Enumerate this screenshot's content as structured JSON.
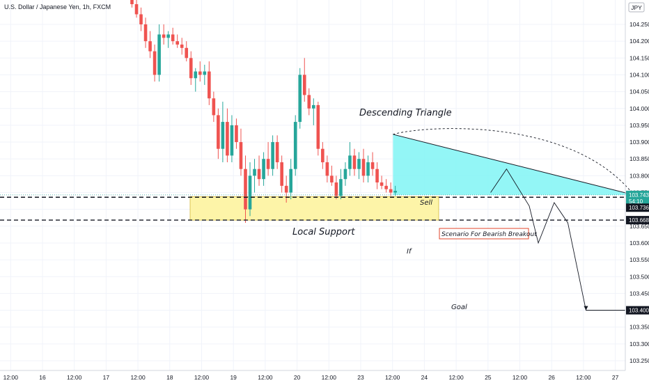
{
  "header": {
    "title": "U.S. Dollar / Japanese Yen, 1h, FXCM",
    "currency_badge": "JPY"
  },
  "chart_data": {
    "type": "candlestick",
    "instrument": "U.S. Dollar / Japanese Yen",
    "timeframe": "1h",
    "source": "FXCM",
    "ylim": [
      103.22,
      104.32
    ],
    "y_ticks": [
      104.25,
      104.2,
      104.15,
      104.1,
      104.05,
      104.0,
      103.95,
      103.9,
      103.85,
      103.8,
      103.75,
      103.7,
      103.65,
      103.6,
      103.55,
      103.5,
      103.45,
      103.4,
      103.35,
      103.3,
      103.25
    ],
    "y_tick_labels": [
      "104.250",
      "104.200",
      "104.150",
      "104.100",
      "104.050",
      "104.000",
      "103.950",
      "103.900",
      "103.850",
      "103.800",
      "103.750",
      "103.700",
      "103.650",
      "103.600",
      "103.550",
      "103.500",
      "103.450",
      "103.400",
      "103.350",
      "103.300",
      "103.250"
    ],
    "top_partial_label": "1",
    "x_labels": [
      "12:00",
      "16",
      "12:00",
      "17",
      "12:00",
      "18",
      "12:00",
      "19",
      "12:00",
      "20",
      "12:00",
      "23",
      "12:00",
      "24",
      "12:00",
      "25",
      "12:00",
      "26",
      "12:00",
      "27"
    ],
    "x_unit": "hours from Nov 16 00:00 (chart session hours)",
    "x_positions_hours": [
      -12,
      0,
      12,
      24,
      36,
      48,
      60,
      72,
      84,
      96,
      108,
      120,
      132,
      144,
      156,
      168,
      180,
      192,
      204,
      216
    ],
    "price_tags": [
      {
        "label": "103.743",
        "value": 103.743,
        "color": "#26a69a"
      },
      {
        "label": "54:10",
        "value": 103.7245,
        "color": "#26a69a"
      },
      {
        "label": "103.736",
        "value": 103.705,
        "color": "#131722"
      },
      {
        "label": "103.668",
        "value": 103.668,
        "color": "#131722"
      },
      {
        "label": "103.400",
        "value": 103.4,
        "color": "#131722"
      }
    ],
    "levels": {
      "current_price": 103.743,
      "resistance_dashed": 103.736,
      "support_dashed": 103.668,
      "goal": 103.4,
      "support_zone": [
        103.668,
        103.738
      ]
    },
    "candles": [
      {
        "t": 0,
        "o": 104.33,
        "h": 104.34,
        "l": 104.3,
        "c": 104.31
      },
      {
        "t": 1,
        "o": 104.31,
        "h": 104.33,
        "l": 104.27,
        "c": 104.28
      },
      {
        "t": 2,
        "o": 104.28,
        "h": 104.3,
        "l": 104.23,
        "c": 104.25
      },
      {
        "t": 3,
        "o": 104.25,
        "h": 104.27,
        "l": 104.18,
        "c": 104.2
      },
      {
        "t": 4,
        "o": 104.2,
        "h": 104.23,
        "l": 104.15,
        "c": 104.17
      },
      {
        "t": 5,
        "o": 104.17,
        "h": 104.19,
        "l": 104.08,
        "c": 104.1
      },
      {
        "t": 6,
        "o": 104.1,
        "h": 104.25,
        "l": 104.08,
        "c": 104.22
      },
      {
        "t": 7,
        "o": 104.22,
        "h": 104.25,
        "l": 104.19,
        "c": 104.21
      },
      {
        "t": 8,
        "o": 104.21,
        "h": 104.23,
        "l": 104.18,
        "c": 104.22
      },
      {
        "t": 9,
        "o": 104.22,
        "h": 104.24,
        "l": 104.19,
        "c": 104.2
      },
      {
        "t": 10,
        "o": 104.2,
        "h": 104.22,
        "l": 104.18,
        "c": 104.19
      },
      {
        "t": 11,
        "o": 104.19,
        "h": 104.21,
        "l": 104.16,
        "c": 104.18
      },
      {
        "t": 12,
        "o": 104.18,
        "h": 104.2,
        "l": 104.14,
        "c": 104.15
      },
      {
        "t": 13,
        "o": 104.15,
        "h": 104.17,
        "l": 104.07,
        "c": 104.09
      },
      {
        "t": 14,
        "o": 104.09,
        "h": 104.12,
        "l": 104.05,
        "c": 104.11
      },
      {
        "t": 15,
        "o": 104.11,
        "h": 104.14,
        "l": 104.08,
        "c": 104.1
      },
      {
        "t": 16,
        "o": 104.1,
        "h": 104.13,
        "l": 104.07,
        "c": 104.11
      },
      {
        "t": 17,
        "o": 104.11,
        "h": 104.14,
        "l": 104.01,
        "c": 104.03
      },
      {
        "t": 18,
        "o": 104.03,
        "h": 104.05,
        "l": 103.96,
        "c": 103.98
      },
      {
        "t": 19,
        "o": 103.98,
        "h": 104.0,
        "l": 103.85,
        "c": 103.88
      },
      {
        "t": 20,
        "o": 103.88,
        "h": 104.02,
        "l": 103.84,
        "c": 103.96
      },
      {
        "t": 21,
        "o": 103.96,
        "h": 104.0,
        "l": 103.84,
        "c": 103.86
      },
      {
        "t": 22,
        "o": 103.86,
        "h": 103.98,
        "l": 103.84,
        "c": 103.95
      },
      {
        "t": 23,
        "o": 103.95,
        "h": 103.97,
        "l": 103.88,
        "c": 103.9
      },
      {
        "t": 24,
        "o": 103.9,
        "h": 103.94,
        "l": 103.8,
        "c": 103.82
      },
      {
        "t": 25,
        "o": 103.82,
        "h": 103.86,
        "l": 103.66,
        "c": 103.7
      },
      {
        "t": 26,
        "o": 103.7,
        "h": 103.84,
        "l": 103.68,
        "c": 103.8
      },
      {
        "t": 27,
        "o": 103.8,
        "h": 103.85,
        "l": 103.75,
        "c": 103.82
      },
      {
        "t": 28,
        "o": 103.82,
        "h": 103.86,
        "l": 103.77,
        "c": 103.79
      },
      {
        "t": 29,
        "o": 103.79,
        "h": 103.87,
        "l": 103.77,
        "c": 103.85
      },
      {
        "t": 30,
        "o": 103.85,
        "h": 103.9,
        "l": 103.8,
        "c": 103.82
      },
      {
        "t": 31,
        "o": 103.82,
        "h": 103.92,
        "l": 103.8,
        "c": 103.9
      },
      {
        "t": 32,
        "o": 103.9,
        "h": 103.92,
        "l": 103.82,
        "c": 103.84
      },
      {
        "t": 33,
        "o": 103.84,
        "h": 103.86,
        "l": 103.75,
        "c": 103.77
      },
      {
        "t": 34,
        "o": 103.77,
        "h": 103.8,
        "l": 103.72,
        "c": 103.75
      },
      {
        "t": 35,
        "o": 103.75,
        "h": 103.85,
        "l": 103.73,
        "c": 103.82
      },
      {
        "t": 36,
        "o": 103.82,
        "h": 103.98,
        "l": 103.8,
        "c": 103.96
      },
      {
        "t": 37,
        "o": 103.96,
        "h": 104.12,
        "l": 103.94,
        "c": 104.1
      },
      {
        "t": 38,
        "o": 104.1,
        "h": 104.15,
        "l": 104.02,
        "c": 104.04
      },
      {
        "t": 39,
        "o": 104.04,
        "h": 104.06,
        "l": 103.98,
        "c": 104.0
      },
      {
        "t": 40,
        "o": 104.0,
        "h": 104.03,
        "l": 103.95,
        "c": 104.01
      },
      {
        "t": 41,
        "o": 104.01,
        "h": 104.02,
        "l": 103.86,
        "c": 103.88
      },
      {
        "t": 42,
        "o": 103.88,
        "h": 103.9,
        "l": 103.82,
        "c": 103.84
      },
      {
        "t": 43,
        "o": 103.84,
        "h": 103.86,
        "l": 103.78,
        "c": 103.8
      },
      {
        "t": 44,
        "o": 103.8,
        "h": 103.83,
        "l": 103.77,
        "c": 103.78
      },
      {
        "t": 45,
        "o": 103.78,
        "h": 103.8,
        "l": 103.73,
        "c": 103.74
      },
      {
        "t": 46,
        "o": 103.74,
        "h": 103.82,
        "l": 103.73,
        "c": 103.79
      },
      {
        "t": 47,
        "o": 103.79,
        "h": 103.84,
        "l": 103.77,
        "c": 103.82
      },
      {
        "t": 48,
        "o": 103.82,
        "h": 103.9,
        "l": 103.8,
        "c": 103.86
      },
      {
        "t": 49,
        "o": 103.86,
        "h": 103.88,
        "l": 103.8,
        "c": 103.82
      },
      {
        "t": 50,
        "o": 103.82,
        "h": 103.87,
        "l": 103.79,
        "c": 103.85
      },
      {
        "t": 51,
        "o": 103.85,
        "h": 103.88,
        "l": 103.78,
        "c": 103.8
      },
      {
        "t": 52,
        "o": 103.8,
        "h": 103.86,
        "l": 103.78,
        "c": 103.84
      },
      {
        "t": 53,
        "o": 103.84,
        "h": 103.87,
        "l": 103.8,
        "c": 103.82
      },
      {
        "t": 54,
        "o": 103.82,
        "h": 103.84,
        "l": 103.76,
        "c": 103.78
      },
      {
        "t": 55,
        "o": 103.78,
        "h": 103.8,
        "l": 103.76,
        "c": 103.77
      },
      {
        "t": 56,
        "o": 103.77,
        "h": 103.79,
        "l": 103.75,
        "c": 103.76
      },
      {
        "t": 57,
        "o": 103.76,
        "h": 103.78,
        "l": 103.74,
        "c": 103.75
      },
      {
        "t": 58,
        "o": 103.75,
        "h": 103.77,
        "l": 103.74,
        "c": 103.755
      }
    ],
    "triangle": {
      "upper": [
        [
          57.5,
          103.923
        ],
        [
          110.5,
          103.743
        ]
      ],
      "lower": [
        [
          57.5,
          103.743
        ],
        [
          110.5,
          103.743
        ]
      ]
    },
    "projection_path": [
      [
        79,
        103.75
      ],
      [
        82.5,
        103.82
      ],
      [
        87.5,
        103.71
      ],
      [
        89.5,
        103.6
      ],
      [
        93,
        103.72
      ],
      [
        96,
        103.66
      ],
      [
        100,
        103.4
      ],
      [
        200,
        103.4
      ]
    ],
    "arc": {
      "from": [
        57.5,
        103.923
      ],
      "to": [
        110.5,
        103.743
      ]
    },
    "annotations": {
      "descending_triangle": "Descending Triangle",
      "local_support": "Local Support",
      "sell": "Sell",
      "if": "If",
      "goal": "Goal",
      "scenario": "Scenario For Bearish Breakout"
    },
    "colors": {
      "up": "#26a69a",
      "down": "#ef5350",
      "triangle_fill": "#80f4f4",
      "support_fill": "#fdf4a8",
      "support_border": "#d4b93a",
      "scenario_border": "#e0452b",
      "grid": "#f0f3fa"
    }
  }
}
